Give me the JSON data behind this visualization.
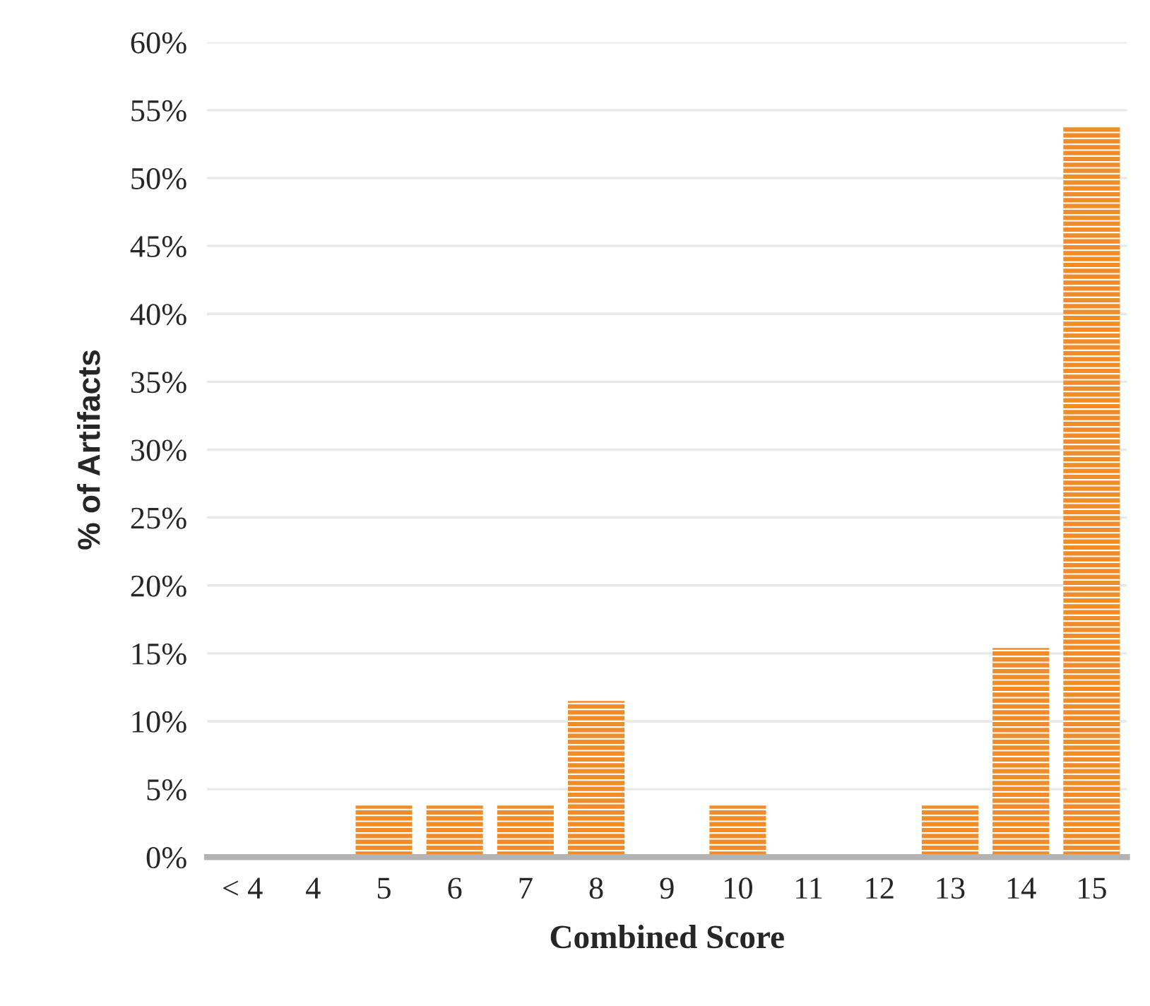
{
  "chart_data": {
    "type": "bar",
    "xlabel": "Combined Score",
    "ylabel": "% of Artifacts",
    "categories": [
      "< 4",
      "4",
      "5",
      "6",
      "7",
      "8",
      "9",
      "10",
      "11",
      "12",
      "13",
      "14",
      "15"
    ],
    "values": [
      0,
      0,
      3.8,
      3.8,
      3.8,
      11.5,
      0,
      3.8,
      0,
      0,
      3.8,
      15.4,
      53.8
    ],
    "color": "#f28c28",
    "ylim": [
      0,
      60
    ],
    "yticks": [
      {
        "value": 0,
        "label": "0%"
      },
      {
        "value": 5,
        "label": "5%"
      },
      {
        "value": 10,
        "label": "10%"
      },
      {
        "value": 15,
        "label": "15%"
      },
      {
        "value": 20,
        "label": "20%"
      },
      {
        "value": 25,
        "label": "25%"
      },
      {
        "value": 30,
        "label": "30%"
      },
      {
        "value": 35,
        "label": "35%"
      },
      {
        "value": 40,
        "label": "40%"
      },
      {
        "value": 45,
        "label": "45%"
      },
      {
        "value": 50,
        "label": "50%"
      },
      {
        "value": 55,
        "label": "55%"
      },
      {
        "value": 60,
        "label": "60%"
      }
    ],
    "grid": "y",
    "legend": false
  }
}
